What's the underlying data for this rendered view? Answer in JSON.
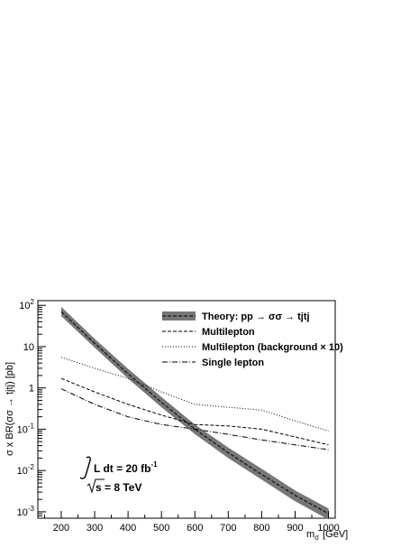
{
  "chart_data": {
    "type": "line",
    "title": "",
    "xlabel": "m",
    "xlabel_sub": "σ",
    "xlabel_unit": "[GeV]",
    "ylabel": "σ x BR(σσ → tjtj) [pb]",
    "xlim": [
      130,
      1020
    ],
    "ylim": [
      0.0007,
      130
    ],
    "yscale": "log",
    "grid": false,
    "legend_position": "top-right",
    "x_ticks": [
      200,
      300,
      400,
      500,
      600,
      700,
      800,
      900,
      1000
    ],
    "x_tick_labels": [
      "200",
      "300",
      "400",
      "500",
      "600",
      "700",
      "800",
      "900",
      "1000"
    ],
    "y_ticks": [
      0.001,
      0.01,
      0.1,
      1,
      10,
      100
    ],
    "y_tick_labels": [
      {
        "base": "10",
        "exp": "-3"
      },
      {
        "base": "10",
        "exp": "-2"
      },
      {
        "base": "10",
        "exp": "-1"
      },
      {
        "base": "1",
        "exp": ""
      },
      {
        "base": "10",
        "exp": ""
      },
      {
        "base": "10",
        "exp": "2"
      }
    ],
    "series": [
      {
        "name": "Theory: pp → σσ → tjtj",
        "style": "band",
        "color": "#777777",
        "x": [
          200,
          300,
          400,
          500,
          600,
          700,
          800,
          900,
          1000
        ],
        "y": [
          70,
          12,
          2.2,
          0.45,
          0.1,
          0.027,
          0.008,
          0.0025,
          0.0009
        ],
        "y_low": [
          55,
          9.5,
          1.7,
          0.34,
          0.076,
          0.02,
          0.006,
          0.0018,
          0.00065
        ],
        "y_high": [
          92,
          15.5,
          2.9,
          0.6,
          0.13,
          0.036,
          0.011,
          0.0033,
          0.0012
        ]
      },
      {
        "name": "Multilepton",
        "style": "dashed",
        "color": "#000000",
        "x": [
          200,
          300,
          400,
          500,
          600,
          700,
          800,
          900,
          1000
        ],
        "y": [
          1.7,
          0.8,
          0.4,
          0.22,
          0.13,
          0.12,
          0.1,
          0.065,
          0.042
        ]
      },
      {
        "name": "Multilepton (background × 10)",
        "style": "dotted",
        "color": "#000000",
        "x": [
          200,
          300,
          400,
          500,
          600,
          700,
          800,
          900,
          1000
        ],
        "y": [
          5.5,
          3.0,
          1.7,
          0.8,
          0.4,
          0.34,
          0.29,
          0.16,
          0.09
        ]
      },
      {
        "name": "Single lepton",
        "style": "dashdot",
        "color": "#000000",
        "x": [
          200,
          300,
          400,
          500,
          600,
          700,
          800,
          900,
          1000
        ],
        "y": [
          0.95,
          0.4,
          0.2,
          0.13,
          0.1,
          0.075,
          0.055,
          0.042,
          0.032
        ]
      }
    ],
    "annotations": [
      {
        "prefix": "L dt = 20 fb",
        "sup": "-1"
      },
      {
        "prefix": "s = 8 TeV",
        "sup": ""
      }
    ]
  }
}
